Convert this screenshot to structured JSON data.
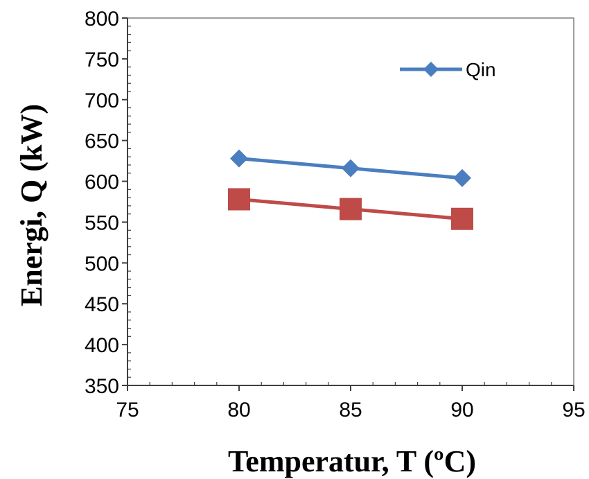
{
  "chart_data": {
    "type": "line",
    "title": "",
    "xlabel": "Temperatur, T (ºC)",
    "ylabel": "Energi, Q (kW)",
    "xlim": [
      75,
      95
    ],
    "ylim": [
      350,
      800
    ],
    "xticks": [
      75,
      80,
      85,
      90,
      95
    ],
    "yticks": [
      350,
      400,
      450,
      500,
      550,
      600,
      650,
      700,
      750,
      800
    ],
    "grid": false,
    "legend_position": "top-right",
    "series": [
      {
        "name": "Qin",
        "x": [
          80,
          85,
          90
        ],
        "values": [
          628,
          616,
          604
        ],
        "color": "#4A7EC0",
        "marker": "diamond"
      },
      {
        "x": [
          80,
          85,
          90
        ],
        "values": [
          578,
          566,
          554
        ],
        "color": "#BE4B48",
        "marker": "square"
      }
    ]
  }
}
